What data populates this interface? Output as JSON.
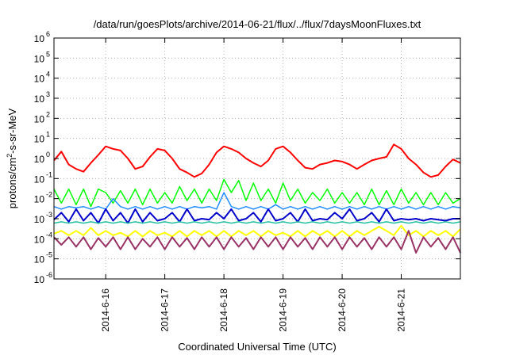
{
  "chart_data": {
    "type": "line",
    "title": "/data/run/goesPlots/archive/2014-06-21/flux/../flux/7daysMoonFluxes.txt",
    "xlabel": "Coordinated Universal Time (UTC)",
    "ylabel": {
      "prefix": "protons/cm",
      "sup": "2",
      "suffix": "-s-sr-MeV"
    },
    "y_scale": "log",
    "ylim": [
      1e-06,
      1000000.0
    ],
    "y_tick_exponents": [
      -6,
      -5,
      -4,
      -3,
      -2,
      -1,
      0,
      1,
      2,
      3,
      4,
      5,
      6
    ],
    "y_tick_base": "10",
    "xlim": [
      "2014-06-15T03:00",
      "2014-06-22T00:00"
    ],
    "x_ticks": [
      {
        "date": "2014-06-16T00:00",
        "label": "2014-6-16"
      },
      {
        "date": "2014-06-17T00:00",
        "label": "2014-6-17"
      },
      {
        "date": "2014-06-18T00:00",
        "label": "2014-6-18"
      },
      {
        "date": "2014-06-19T00:00",
        "label": "2014-6-19"
      },
      {
        "date": "2014-06-20T00:00",
        "label": "2014-6-20"
      },
      {
        "date": "2014-06-21T00:00",
        "label": "2014-6-21"
      }
    ],
    "grid": true,
    "x": [
      "2014-06-15T03:00",
      "2014-06-15T06:00",
      "2014-06-15T09:00",
      "2014-06-15T12:00",
      "2014-06-15T15:00",
      "2014-06-15T18:00",
      "2014-06-15T21:00",
      "2014-06-16T00:00",
      "2014-06-16T03:00",
      "2014-06-16T06:00",
      "2014-06-16T09:00",
      "2014-06-16T12:00",
      "2014-06-16T15:00",
      "2014-06-16T18:00",
      "2014-06-16T21:00",
      "2014-06-17T00:00",
      "2014-06-17T03:00",
      "2014-06-17T06:00",
      "2014-06-17T09:00",
      "2014-06-17T12:00",
      "2014-06-17T15:00",
      "2014-06-17T18:00",
      "2014-06-17T21:00",
      "2014-06-18T00:00",
      "2014-06-18T03:00",
      "2014-06-18T06:00",
      "2014-06-18T09:00",
      "2014-06-18T12:00",
      "2014-06-18T15:00",
      "2014-06-18T18:00",
      "2014-06-18T21:00",
      "2014-06-19T00:00",
      "2014-06-19T03:00",
      "2014-06-19T06:00",
      "2014-06-19T09:00",
      "2014-06-19T12:00",
      "2014-06-19T15:00",
      "2014-06-19T18:00",
      "2014-06-19T21:00",
      "2014-06-20T00:00",
      "2014-06-20T03:00",
      "2014-06-20T06:00",
      "2014-06-20T09:00",
      "2014-06-20T12:00",
      "2014-06-20T15:00",
      "2014-06-20T18:00",
      "2014-06-20T21:00",
      "2014-06-21T00:00",
      "2014-06-21T03:00",
      "2014-06-21T06:00",
      "2014-06-21T09:00",
      "2014-06-21T12:00",
      "2014-06-21T15:00",
      "2014-06-21T18:00",
      "2014-06-21T21:00",
      "2014-06-22T00:00"
    ],
    "series": [
      {
        "color": "#ff0000",
        "width": 2,
        "values": [
          0.8,
          2.2,
          0.5,
          0.3,
          0.22,
          0.6,
          1.5,
          4.0,
          3.0,
          2.5,
          1.0,
          0.3,
          0.4,
          1.2,
          3.0,
          2.5,
          1.0,
          0.3,
          0.2,
          0.12,
          0.18,
          0.5,
          2.0,
          4.0,
          3.0,
          2.0,
          1.0,
          0.6,
          0.4,
          0.8,
          3.0,
          4.0,
          2.0,
          0.8,
          0.35,
          0.3,
          0.5,
          0.6,
          0.8,
          0.7,
          0.5,
          0.3,
          0.5,
          0.8,
          1.0,
          1.2,
          5.0,
          3.0,
          1.0,
          0.5,
          0.2,
          0.12,
          0.15,
          0.4,
          0.9,
          0.6
        ]
      },
      {
        "color": "#00ff00",
        "width": 1.5,
        "values": [
          0.03,
          0.006,
          0.03,
          0.005,
          0.03,
          0.004,
          0.03,
          0.02,
          0.006,
          0.025,
          0.006,
          0.03,
          0.005,
          0.03,
          0.006,
          0.02,
          0.006,
          0.04,
          0.008,
          0.03,
          0.006,
          0.03,
          0.008,
          0.09,
          0.02,
          0.08,
          0.008,
          0.06,
          0.008,
          0.03,
          0.006,
          0.06,
          0.008,
          0.03,
          0.006,
          0.02,
          0.008,
          0.03,
          0.006,
          0.02,
          0.006,
          0.02,
          0.005,
          0.03,
          0.005,
          0.025,
          0.005,
          0.03,
          0.006,
          0.02,
          0.005,
          0.02,
          0.005,
          0.02,
          0.006,
          0.01
        ]
      },
      {
        "color": "#1e8cff",
        "width": 1.5,
        "values": [
          0.004,
          0.003,
          0.004,
          0.0035,
          0.004,
          0.003,
          0.004,
          0.003,
          0.01,
          0.004,
          0.003,
          0.004,
          0.003,
          0.004,
          0.003,
          0.004,
          0.003,
          0.004,
          0.003,
          0.004,
          0.0035,
          0.004,
          0.003,
          0.02,
          0.004,
          0.003,
          0.004,
          0.003,
          0.004,
          0.003,
          0.005,
          0.003,
          0.004,
          0.003,
          0.004,
          0.003,
          0.004,
          0.003,
          0.004,
          0.003,
          0.004,
          0.003,
          0.004,
          0.003,
          0.004,
          0.003,
          0.004,
          0.003,
          0.004,
          0.003,
          0.004,
          0.003,
          0.004,
          0.003,
          0.004,
          0.0035
        ]
      },
      {
        "color": "#0000cc",
        "width": 2,
        "values": [
          0.0009,
          0.002,
          0.0007,
          0.003,
          0.0008,
          0.002,
          0.0006,
          0.003,
          0.0008,
          0.002,
          0.0006,
          0.003,
          0.0007,
          0.002,
          0.0008,
          0.001,
          0.002,
          0.0007,
          0.003,
          0.0008,
          0.001,
          0.0009,
          0.002,
          0.001,
          0.003,
          0.0008,
          0.001,
          0.002,
          0.0007,
          0.003,
          0.0008,
          0.001,
          0.002,
          0.0007,
          0.003,
          0.0008,
          0.001,
          0.0009,
          0.002,
          0.001,
          0.003,
          0.0008,
          0.001,
          0.002,
          0.0007,
          0.003,
          0.0008,
          0.001,
          0.0009,
          0.001,
          0.0008,
          0.001,
          0.0009,
          0.0008,
          0.001,
          0.001
        ]
      },
      {
        "color": "#20c0a0",
        "width": 1.5,
        "values": [
          0.0006,
          0.0007,
          0.0006,
          0.0007,
          0.0006,
          0.0007,
          0.0006,
          0.0007,
          0.0006,
          0.0007,
          0.0006,
          0.0007,
          0.0006,
          0.0007,
          0.0006,
          0.0007,
          0.0006,
          0.0007,
          0.0006,
          0.0007,
          0.0006,
          0.0007,
          0.0006,
          0.0007,
          0.0006,
          0.0007,
          0.0006,
          0.0007,
          0.0006,
          0.0007,
          0.0006,
          0.0007,
          0.0006,
          0.0007,
          0.0006,
          0.0007,
          0.0006,
          0.0007,
          0.0006,
          0.0007,
          0.0006,
          0.0007,
          0.0006,
          0.0007,
          0.0006,
          0.0007,
          0.0006,
          0.0007,
          0.0006,
          0.0007,
          0.0006,
          0.0007,
          0.0006,
          0.0007,
          0.0006,
          0.0007
        ]
      },
      {
        "color": "#ffff00",
        "width": 2,
        "values": [
          0.00018,
          0.00025,
          0.00015,
          0.00025,
          0.00015,
          0.00035,
          0.00015,
          0.00025,
          0.00015,
          0.0002,
          0.00013,
          0.00025,
          0.00013,
          0.00025,
          0.00015,
          0.0002,
          0.00013,
          0.00025,
          0.00013,
          0.00025,
          0.00015,
          0.00025,
          0.00013,
          0.00025,
          0.00013,
          0.00025,
          0.00015,
          0.00025,
          0.00013,
          0.00025,
          0.00015,
          0.0002,
          0.00013,
          0.00025,
          0.00013,
          0.00025,
          0.00015,
          0.00025,
          0.00013,
          0.00025,
          0.00013,
          0.00025,
          0.00015,
          0.00025,
          0.0004,
          0.00025,
          0.00015,
          0.00045,
          0.00015,
          0.00025,
          0.00013,
          0.00025,
          0.00015,
          0.00025,
          0.00013,
          0.0003
        ]
      },
      {
        "color": "#993366",
        "width": 2,
        "values": [
          0.00012,
          5e-05,
          0.00012,
          4e-05,
          0.00012,
          3e-05,
          0.00011,
          4e-05,
          0.00012,
          3e-05,
          0.00012,
          3e-05,
          0.0001,
          4e-05,
          0.00012,
          3e-05,
          0.00012,
          4e-05,
          0.00011,
          3e-05,
          0.00012,
          4e-05,
          0.00012,
          3e-05,
          0.00012,
          4e-05,
          0.00011,
          3e-05,
          0.00012,
          4e-05,
          0.00012,
          3e-05,
          0.00012,
          4e-05,
          0.00011,
          3e-05,
          0.00012,
          4e-05,
          0.00012,
          3e-05,
          0.00012,
          4e-05,
          0.00011,
          3e-05,
          0.00012,
          4e-05,
          0.00012,
          3e-05,
          0.00025,
          2e-05,
          0.00012,
          4e-05,
          0.00011,
          3e-05,
          0.00012,
          2e-05
        ]
      }
    ]
  }
}
